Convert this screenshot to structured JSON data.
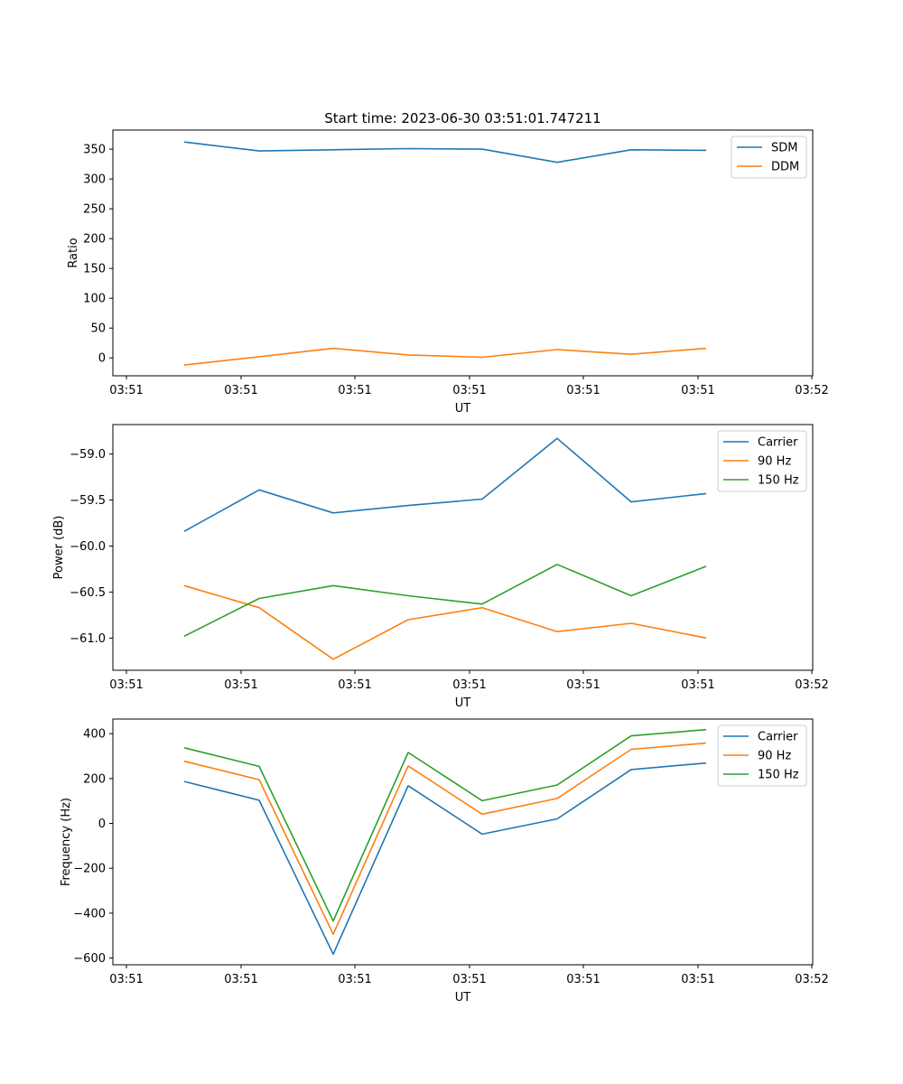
{
  "colors": {
    "blue": "#1f77b4",
    "orange": "#ff7f0e",
    "green": "#2ca02c"
  },
  "chart_data": [
    {
      "type": "line",
      "title": "Start time: 2023-06-30 03:51:01.747211",
      "xlabel": "UT",
      "ylabel": "Ratio",
      "x_tick_labels": [
        "03:51",
        "03:51",
        "03:51",
        "03:51",
        "03:51",
        "03:51",
        "03:52"
      ],
      "ylim": [
        -30,
        382
      ],
      "yticks": [
        0,
        50,
        100,
        150,
        200,
        250,
        300,
        350
      ],
      "grid": false,
      "legend_position": "top-right",
      "series": [
        {
          "name": "SDM",
          "color": "#1f77b4",
          "values": [
            362,
            347,
            349,
            351,
            350,
            328,
            349,
            348
          ]
        },
        {
          "name": "DDM",
          "color": "#ff7f0e",
          "values": [
            -12,
            2,
            16,
            5,
            1,
            14,
            6,
            16
          ]
        }
      ]
    },
    {
      "type": "line",
      "title": "",
      "xlabel": "UT",
      "ylabel": "Power (dB)",
      "x_tick_labels": [
        "03:51",
        "03:51",
        "03:51",
        "03:51",
        "03:51",
        "03:51",
        "03:52"
      ],
      "ylim": [
        -61.35,
        -58.68
      ],
      "yticks": [
        -61.0,
        -60.5,
        -60.0,
        -59.5,
        -59.0
      ],
      "grid": false,
      "legend_position": "top-right",
      "series": [
        {
          "name": "Carrier",
          "color": "#1f77b4",
          "values": [
            -59.84,
            -59.39,
            -59.64,
            -59.56,
            -59.49,
            -58.83,
            -59.52,
            -59.43
          ]
        },
        {
          "name": "90 Hz",
          "color": "#ff7f0e",
          "values": [
            -60.43,
            -60.67,
            -61.23,
            -60.8,
            -60.67,
            -60.93,
            -60.84,
            -61.0
          ]
        },
        {
          "name": "150 Hz",
          "color": "#2ca02c",
          "values": [
            -60.98,
            -60.57,
            -60.43,
            -60.54,
            -60.63,
            -60.2,
            -60.54,
            -60.22
          ]
        }
      ]
    },
    {
      "type": "line",
      "title": "",
      "xlabel": "UT",
      "ylabel": "Frequency (Hz)",
      "x_tick_labels": [
        "03:51",
        "03:51",
        "03:51",
        "03:51",
        "03:51",
        "03:51",
        "03:52"
      ],
      "ylim": [
        -630,
        465
      ],
      "yticks": [
        -600,
        -400,
        -200,
        0,
        200,
        400
      ],
      "grid": false,
      "legend_position": "top-right",
      "series": [
        {
          "name": "Carrier",
          "color": "#1f77b4",
          "values": [
            187,
            103,
            -583,
            168,
            -48,
            20,
            240,
            269
          ]
        },
        {
          "name": "90 Hz",
          "color": "#ff7f0e",
          "values": [
            277,
            195,
            -494,
            256,
            41,
            111,
            330,
            358
          ]
        },
        {
          "name": "150 Hz",
          "color": "#2ca02c",
          "values": [
            337,
            254,
            -435,
            316,
            101,
            171,
            390,
            418
          ]
        }
      ]
    }
  ]
}
